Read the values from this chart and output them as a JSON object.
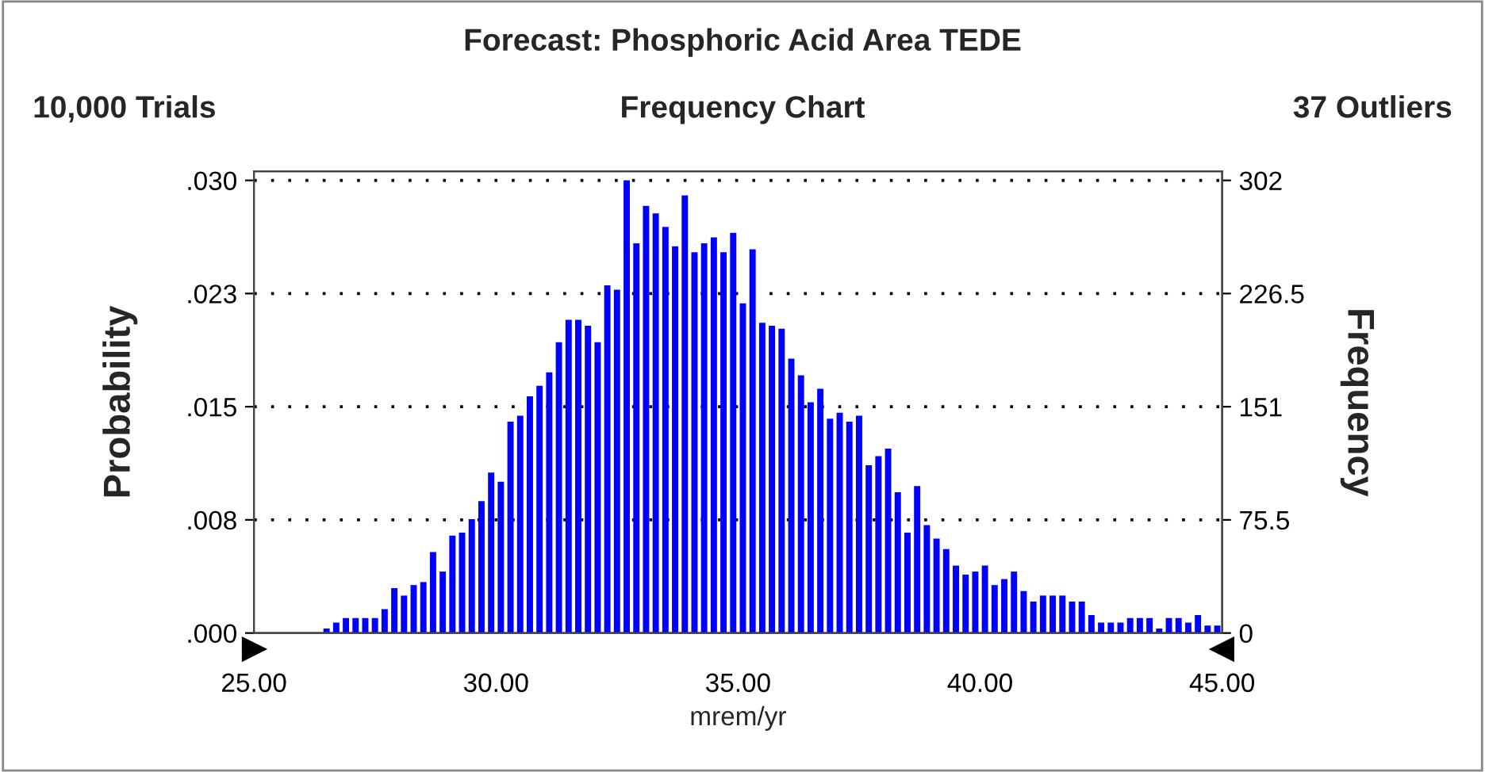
{
  "chart_data": {
    "type": "histogram",
    "title": "Forecast: Phosphoric Acid Area TEDE",
    "subtitle": "Frequency Chart",
    "annotations": [
      "10,000 Trials",
      "37 Outliers"
    ],
    "xlabel": "mrem/yr",
    "ylabel": "Probability",
    "y2label": "Frequency",
    "bins": [
      26.4,
      26.6,
      26.8,
      27.0,
      27.2,
      27.4,
      27.6,
      27.8,
      28.0,
      28.2,
      28.4,
      28.6,
      28.8,
      29.0,
      29.2,
      29.4,
      29.6,
      29.8,
      30.0,
      30.2,
      30.4,
      30.6,
      30.8,
      31.0,
      31.2,
      31.4,
      31.6,
      31.8,
      32.0,
      32.2,
      32.4,
      32.6,
      32.8,
      33.0,
      33.2,
      33.4,
      33.6,
      33.8,
      34.0,
      34.2,
      34.4,
      34.6,
      34.8,
      35.0,
      35.2,
      35.4,
      35.6,
      35.8,
      36.0,
      36.2,
      36.4,
      36.6,
      36.8,
      37.0,
      37.2,
      37.4,
      37.6,
      37.8,
      38.0,
      38.2,
      38.4,
      38.6,
      38.8,
      39.0,
      39.2,
      39.4,
      39.6,
      39.8,
      40.0,
      40.2,
      40.4,
      40.6,
      40.8,
      41.0,
      41.2,
      41.4,
      41.6,
      41.8,
      42.0,
      42.2,
      42.4,
      42.6,
      42.8,
      43.0,
      43.2,
      43.4,
      43.6,
      43.8,
      44.0,
      44.2,
      44.4,
      44.6,
      44.8,
      45.0
    ],
    "series": [
      {
        "color": "#0000ff",
        "axis": "y2",
        "values": [
          3,
          7,
          10,
          10,
          10,
          10,
          16,
          30,
          25,
          32,
          34,
          54,
          41,
          65,
          67,
          76,
          88,
          107,
          101,
          141,
          145,
          158,
          165,
          174,
          194,
          209,
          209,
          205,
          194,
          232,
          229,
          302,
          260,
          285,
          280,
          271,
          258,
          292,
          254,
          260,
          264,
          254,
          267,
          220,
          256,
          207,
          205,
          203,
          183,
          172,
          154,
          163,
          143,
          147,
          141,
          145,
          112,
          118,
          123,
          94,
          67,
          98,
          72,
          63,
          56,
          45,
          39,
          41,
          45,
          32,
          36,
          41,
          28,
          21,
          25,
          25,
          25,
          21,
          21,
          12,
          7,
          7,
          7,
          10,
          10,
          10,
          3,
          10,
          10,
          7,
          12,
          5,
          5
        ]
      }
    ],
    "xlim": [
      25,
      45
    ],
    "xticks": [
      {
        "value": 25,
        "label": "25.00"
      },
      {
        "value": 30,
        "label": "30.00"
      },
      {
        "value": 35,
        "label": "35.00"
      },
      {
        "value": 40,
        "label": "40.00"
      },
      {
        "value": 45,
        "label": "45.00"
      }
    ],
    "ylim": [
      0,
      0.0308
    ],
    "yticks": [
      {
        "value": 0,
        "label": ".000"
      },
      {
        "value": 0.00755,
        "label": ".008"
      },
      {
        "value": 0.0151,
        "label": ".015"
      },
      {
        "value": 0.02265,
        "label": ".023"
      },
      {
        "value": 0.0302,
        "label": ".030"
      }
    ],
    "y2lim": [
      0,
      308
    ],
    "y2ticks": [
      0,
      75.5,
      151,
      226.5,
      302
    ],
    "grid": "y",
    "legend": false
  }
}
